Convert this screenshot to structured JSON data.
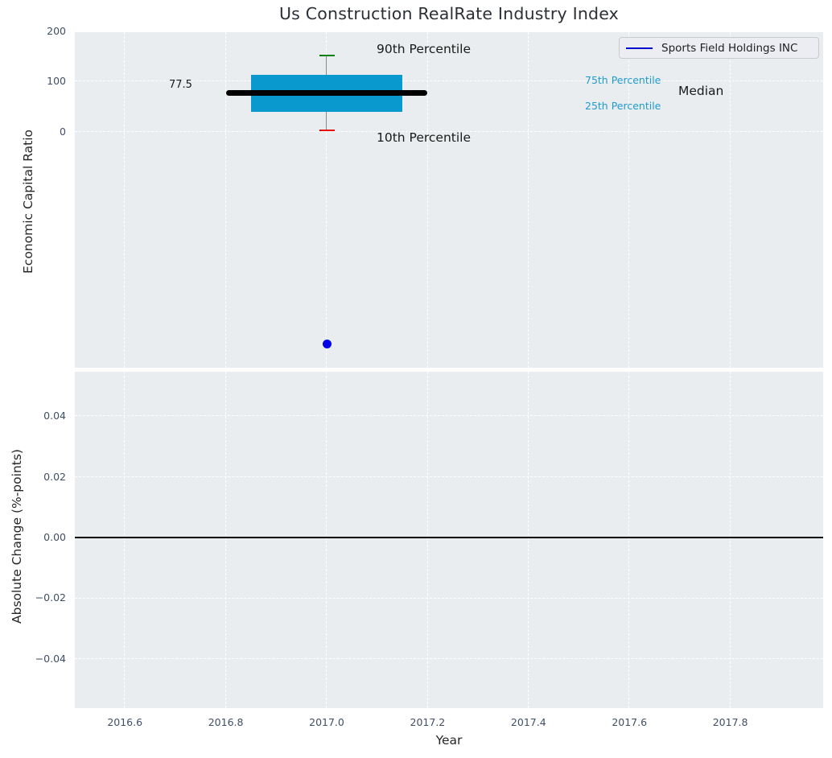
{
  "figure": {
    "title": "Us Construction RealRate Industry Index"
  },
  "top_plot": {
    "ylabel": "Economic Capital Ratio",
    "ytick_labels": [
      "200",
      "100",
      "0"
    ],
    "ytick_values": [
      200,
      100,
      0
    ],
    "annotations": {
      "p90": "90th Percentile",
      "p75": "75th Percentile",
      "median": "Median",
      "p25": "25th Percentile",
      "p10": "10th Percentile",
      "median_value": "77.5"
    },
    "legend_label": "Sports Field Holdings INC"
  },
  "bottom_plot": {
    "ylabel": "Absolute Change (%-points)",
    "xlabel": "Year",
    "ytick_labels": [
      "0.04",
      "0.02",
      "0.00",
      "−0.02",
      "−0.04"
    ],
    "ytick_values": [
      0.04,
      0.02,
      0.0,
      -0.02,
      -0.04
    ],
    "xtick_labels": [
      "2016.6",
      "2016.8",
      "2017.0",
      "2017.2",
      "2017.4",
      "2017.6",
      "2017.8"
    ],
    "xtick_values": [
      2016.6,
      2016.8,
      2017.0,
      2017.2,
      2017.4,
      2017.6,
      2017.8
    ]
  },
  "colors": {
    "box_fill": "#0999cf",
    "median_line": "#000000",
    "whisker": "#8a8a8a",
    "cap_top": "#008000",
    "cap_bottom": "#e60000",
    "company_point": "#0000e8",
    "legend_line": "#0000cd",
    "percentile_label": "#1f9bce",
    "plot_background": "#e9edef",
    "grid": "#ffffff",
    "zero_line": "#000000",
    "tick_text": "#3f4f66"
  },
  "chart_data": [
    {
      "type": "box",
      "title": "Us Construction RealRate Industry Index",
      "ylabel": "Economic Capital Ratio",
      "x_center": 2017.0,
      "box_x_range": [
        2016.85,
        2017.15
      ],
      "median_x_range": [
        2016.8,
        2017.2
      ],
      "percentiles": {
        "p10": 2,
        "p25": 39,
        "median": 77.5,
        "p75": 113,
        "p90": 150
      },
      "median_annotation": "77.5",
      "point_series": [
        {
          "name": "Sports Field Holdings INC",
          "x": 2017.0,
          "y": -423
        }
      ],
      "ylim": [
        -465,
        198
      ],
      "yticks": [
        0,
        100,
        200
      ],
      "xlim": [
        2016.5,
        2018.0
      ],
      "grid": true,
      "legend_position": "upper right",
      "legend_entries": [
        "Sports Field Holdings INC"
      ],
      "annotations": [
        "90th Percentile",
        "75th Percentile",
        "Median",
        "25th Percentile",
        "10th Percentile",
        "77.5"
      ]
    },
    {
      "type": "line",
      "ylabel": "Absolute Change (%-points)",
      "xlabel": "Year",
      "xlim": [
        2016.5,
        2018.0
      ],
      "ylim": [
        -0.056,
        0.055
      ],
      "xticks": [
        2016.6,
        2016.8,
        2017.0,
        2017.2,
        2017.4,
        2017.6,
        2017.8
      ],
      "yticks": [
        0.04,
        0.02,
        0.0,
        -0.02,
        -0.04
      ],
      "zero_line": 0.0,
      "series": [],
      "grid": true
    }
  ]
}
